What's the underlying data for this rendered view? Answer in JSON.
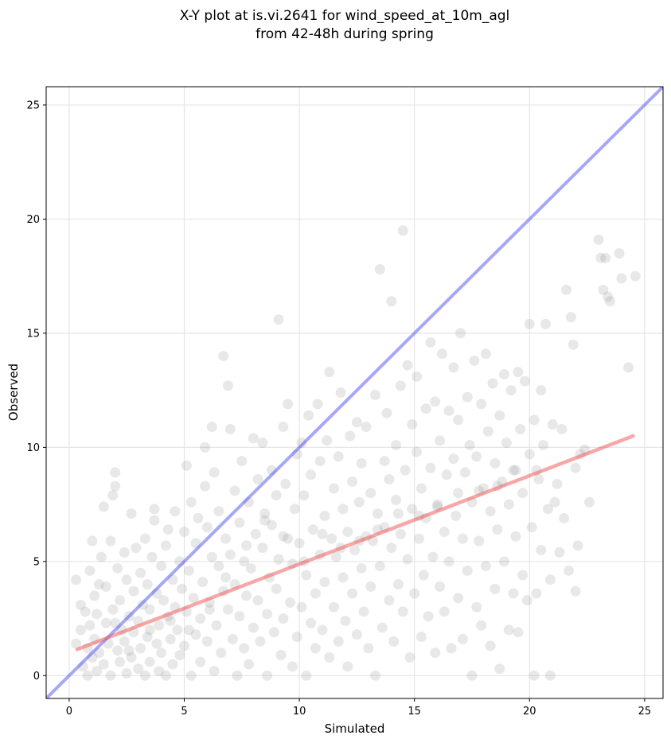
{
  "chart_data": {
    "type": "scatter",
    "title_lines": [
      "X-Y plot at is.vi.2641 for wind_speed_at_10m_agl",
      "from 42-48h during spring"
    ],
    "xlabel": "Simulated",
    "ylabel": "Observed",
    "xlim": [
      -1,
      25.8
    ],
    "ylim": [
      -1,
      25.8
    ],
    "xticks": [
      0,
      5,
      10,
      15,
      20,
      25
    ],
    "yticks": [
      0,
      5,
      10,
      15,
      20,
      25
    ],
    "grid": true,
    "point_color": "#808080",
    "point_opacity": 0.18,
    "one_to_one_line": {
      "x": [
        -1,
        25.8
      ],
      "y": [
        -1,
        25.8
      ],
      "color": "#3c3cf0"
    },
    "fit_line": {
      "x": [
        0.35,
        24.5
      ],
      "y": [
        1.15,
        10.5
      ],
      "color": "#f05050"
    },
    "points": [
      [
        0.3,
        1.4
      ],
      [
        0.3,
        4.2
      ],
      [
        0.5,
        3.1
      ],
      [
        0.5,
        2.0
      ],
      [
        0.6,
        0.4
      ],
      [
        0.7,
        2.8
      ],
      [
        0.8,
        1.2
      ],
      [
        0.8,
        0.0
      ],
      [
        0.9,
        4.6
      ],
      [
        0.9,
        2.2
      ],
      [
        1.0,
        0.8
      ],
      [
        1.0,
        5.9
      ],
      [
        1.1,
        3.5
      ],
      [
        1.1,
        1.6
      ],
      [
        1.2,
        0.2
      ],
      [
        1.2,
        2.7
      ],
      [
        1.3,
        4.0
      ],
      [
        1.3,
        1.0
      ],
      [
        1.4,
        5.2
      ],
      [
        1.5,
        0.5
      ],
      [
        1.5,
        7.4
      ],
      [
        1.6,
        2.3
      ],
      [
        1.6,
        3.9
      ],
      [
        1.7,
        1.4
      ],
      [
        1.8,
        0.0
      ],
      [
        1.8,
        5.9
      ],
      [
        1.9,
        7.9
      ],
      [
        1.9,
        2.9
      ],
      [
        2.0,
        8.9
      ],
      [
        2.0,
        8.3
      ],
      [
        2.1,
        1.1
      ],
      [
        2.1,
        4.7
      ],
      [
        2.2,
        0.6
      ],
      [
        2.2,
        3.3
      ],
      [
        2.3,
        2.0
      ],
      [
        2.4,
        5.4
      ],
      [
        2.4,
        1.5
      ],
      [
        2.5,
        0.1
      ],
      [
        2.5,
        4.2
      ],
      [
        2.6,
        2.6
      ],
      [
        2.7,
        7.1
      ],
      [
        2.7,
        0.8
      ],
      [
        2.8,
        3.7
      ],
      [
        2.8,
        1.9
      ],
      [
        2.9,
        5.6
      ],
      [
        3.0,
        0.3
      ],
      [
        3.0,
        2.4
      ],
      [
        3.1,
        4.5
      ],
      [
        3.1,
        1.2
      ],
      [
        3.2,
        3.1
      ],
      [
        3.3,
        0.0
      ],
      [
        3.3,
        6.0
      ],
      [
        3.4,
        1.7
      ],
      [
        3.4,
        4.0
      ],
      [
        3.5,
        2.9
      ],
      [
        3.5,
        0.6
      ],
      [
        3.6,
        5.2
      ],
      [
        3.7,
        7.3
      ],
      [
        3.7,
        6.8
      ],
      [
        3.8,
        1.4
      ],
      [
        3.8,
        3.6
      ],
      [
        3.9,
        0.2
      ],
      [
        3.9,
        2.2
      ],
      [
        4.0,
        4.8
      ],
      [
        4.0,
        1.0
      ],
      [
        4.1,
        3.3
      ],
      [
        4.2,
        0.0
      ],
      [
        4.2,
        5.7
      ],
      [
        4.3,
        2.6
      ],
      [
        4.3,
        6.4
      ],
      [
        4.4,
        1.6
      ],
      [
        4.5,
        4.2
      ],
      [
        4.5,
        0.5
      ],
      [
        4.6,
        3.0
      ],
      [
        4.6,
        7.2
      ],
      [
        4.7,
        2.0
      ],
      [
        4.8,
        5.0
      ],
      [
        4.8,
        0.9
      ],
      [
        4.9,
        3.8
      ],
      [
        5.0,
        6.3
      ],
      [
        5.0,
        1.3
      ],
      [
        5.1,
        9.2
      ],
      [
        5.1,
        2.8
      ],
      [
        5.2,
        4.6
      ],
      [
        5.3,
        0.0
      ],
      [
        5.3,
        7.6
      ],
      [
        5.4,
        3.4
      ],
      [
        5.5,
        1.8
      ],
      [
        5.5,
        5.8
      ],
      [
        5.6,
        6.9
      ],
      [
        5.7,
        2.5
      ],
      [
        5.7,
        0.6
      ],
      [
        5.8,
        4.1
      ],
      [
        5.9,
        10.0
      ],
      [
        5.9,
        8.3
      ],
      [
        6.0,
        1.5
      ],
      [
        6.0,
        6.5
      ],
      [
        6.1,
        3.2
      ],
      [
        6.2,
        10.9
      ],
      [
        6.2,
        5.2
      ],
      [
        6.3,
        0.2
      ],
      [
        6.3,
        8.9
      ],
      [
        6.4,
        2.2
      ],
      [
        6.5,
        4.8
      ],
      [
        6.5,
        7.2
      ],
      [
        6.6,
        1.0
      ],
      [
        6.7,
        3.7
      ],
      [
        6.7,
        14.0
      ],
      [
        6.8,
        6.0
      ],
      [
        6.9,
        12.7
      ],
      [
        6.9,
        2.9
      ],
      [
        7.0,
        10.8
      ],
      [
        7.0,
        5.3
      ],
      [
        7.1,
        1.6
      ],
      [
        7.2,
        8.1
      ],
      [
        7.2,
        4.0
      ],
      [
        7.3,
        0.0
      ],
      [
        7.4,
        6.7
      ],
      [
        7.4,
        2.6
      ],
      [
        7.5,
        9.4
      ],
      [
        7.6,
        5.0
      ],
      [
        7.6,
        1.2
      ],
      [
        7.7,
        3.5
      ],
      [
        7.8,
        7.6
      ],
      [
        7.8,
        0.5
      ],
      [
        7.9,
        4.7
      ],
      [
        8.0,
        10.4
      ],
      [
        8.0,
        2.1
      ],
      [
        8.1,
        6.2
      ],
      [
        8.2,
        8.6
      ],
      [
        8.2,
        3.3
      ],
      [
        8.3,
        1.5
      ],
      [
        8.4,
        5.6
      ],
      [
        8.4,
        10.2
      ],
      [
        8.5,
        7.1
      ],
      [
        8.6,
        2.7
      ],
      [
        8.6,
        0.0
      ],
      [
        8.7,
        4.3
      ],
      [
        8.8,
        9.0
      ],
      [
        8.8,
        6.6
      ],
      [
        8.9,
        1.9
      ],
      [
        9.0,
        3.8
      ],
      [
        9.0,
        7.9
      ],
      [
        9.1,
        15.6
      ],
      [
        9.1,
        5.1
      ],
      [
        9.2,
        0.9
      ],
      [
        9.3,
        10.9
      ],
      [
        9.3,
        2.5
      ],
      [
        9.4,
        8.4
      ],
      [
        9.5,
        6.0
      ],
      [
        9.5,
        11.9
      ],
      [
        9.6,
        3.2
      ],
      [
        9.7,
        4.9
      ],
      [
        9.7,
        0.4
      ],
      [
        9.8,
        7.3
      ],
      [
        9.9,
        9.7
      ],
      [
        9.9,
        1.7
      ],
      [
        10.0,
        5.8
      ],
      [
        10.1,
        3.0
      ],
      [
        10.1,
        10.2
      ],
      [
        10.2,
        7.9
      ],
      [
        10.3,
        0.0
      ],
      [
        10.3,
        4.4
      ],
      [
        10.4,
        11.4
      ],
      [
        10.5,
        2.3
      ],
      [
        10.5,
        8.8
      ],
      [
        10.6,
        6.4
      ],
      [
        10.7,
        1.2
      ],
      [
        10.7,
        3.6
      ],
      [
        10.8,
        11.9
      ],
      [
        10.9,
        9.4
      ],
      [
        10.9,
        5.3
      ],
      [
        11.0,
        2.0
      ],
      [
        11.1,
        7.0
      ],
      [
        11.1,
        4.1
      ],
      [
        11.2,
        10.3
      ],
      [
        11.3,
        0.8
      ],
      [
        11.3,
        13.3
      ],
      [
        11.4,
        6.0
      ],
      [
        11.5,
        8.2
      ],
      [
        11.5,
        3.0
      ],
      [
        11.6,
        5.2
      ],
      [
        11.7,
        1.5
      ],
      [
        11.7,
        9.6
      ],
      [
        11.8,
        12.4
      ],
      [
        11.9,
        4.3
      ],
      [
        11.9,
        7.3
      ],
      [
        12.0,
        2.4
      ],
      [
        12.1,
        6.3
      ],
      [
        12.1,
        0.4
      ],
      [
        12.2,
        10.5
      ],
      [
        12.3,
        3.6
      ],
      [
        12.3,
        8.5
      ],
      [
        12.4,
        5.5
      ],
      [
        12.5,
        11.1
      ],
      [
        12.5,
        1.8
      ],
      [
        12.6,
        7.6
      ],
      [
        12.7,
        4.7
      ],
      [
        12.7,
        9.3
      ],
      [
        12.8,
        2.8
      ],
      [
        12.9,
        6.1
      ],
      [
        12.9,
        10.9
      ],
      [
        13.0,
        1.2
      ],
      [
        13.1,
        8.0
      ],
      [
        13.1,
        3.9
      ],
      [
        13.2,
        5.9
      ],
      [
        13.3,
        0.0
      ],
      [
        13.3,
        12.3
      ],
      [
        13.4,
        7.1
      ],
      [
        13.5,
        17.8
      ],
      [
        13.5,
        4.8
      ],
      [
        13.6,
        2.1
      ],
      [
        13.7,
        9.4
      ],
      [
        13.7,
        6.5
      ],
      [
        13.8,
        11.5
      ],
      [
        13.9,
        3.3
      ],
      [
        13.9,
        8.6
      ],
      [
        14.0,
        16.4
      ],
      [
        14.0,
        5.6
      ],
      [
        14.1,
        1.5
      ],
      [
        14.2,
        10.1
      ],
      [
        14.2,
        7.7
      ],
      [
        14.3,
        4.0
      ],
      [
        14.4,
        12.7
      ],
      [
        14.4,
        6.2
      ],
      [
        14.5,
        19.5
      ],
      [
        14.5,
        2.8
      ],
      [
        14.6,
        9.0
      ],
      [
        14.7,
        13.6
      ],
      [
        14.7,
        5.1
      ],
      [
        14.8,
        0.8
      ],
      [
        14.9,
        11.0
      ],
      [
        14.9,
        7.3
      ],
      [
        15.0,
        3.6
      ],
      [
        15.1,
        13.1
      ],
      [
        15.1,
        9.8
      ],
      [
        15.2,
        6.0
      ],
      [
        15.3,
        1.7
      ],
      [
        15.3,
        8.2
      ],
      [
        15.4,
        4.4
      ],
      [
        15.5,
        11.7
      ],
      [
        15.5,
        6.9
      ],
      [
        15.6,
        2.6
      ],
      [
        15.7,
        14.6
      ],
      [
        15.7,
        9.1
      ],
      [
        15.8,
        5.2
      ],
      [
        15.9,
        1.0
      ],
      [
        15.9,
        12.0
      ],
      [
        16.0,
        7.4
      ],
      [
        16.1,
        3.9
      ],
      [
        16.1,
        10.3
      ],
      [
        16.2,
        14.1
      ],
      [
        16.3,
        6.3
      ],
      [
        16.3,
        2.8
      ],
      [
        16.4,
        8.8
      ],
      [
        16.5,
        11.6
      ],
      [
        16.5,
        5.0
      ],
      [
        16.6,
        1.2
      ],
      [
        16.7,
        13.5
      ],
      [
        16.7,
        9.5
      ],
      [
        16.8,
        7.0
      ],
      [
        16.9,
        3.4
      ],
      [
        16.9,
        11.2
      ],
      [
        17.0,
        15.0
      ],
      [
        17.1,
        6.0
      ],
      [
        17.1,
        1.6
      ],
      [
        17.2,
        8.9
      ],
      [
        17.3,
        12.2
      ],
      [
        17.3,
        4.6
      ],
      [
        17.4,
        10.1
      ],
      [
        17.5,
        0.0
      ],
      [
        17.5,
        7.6
      ],
      [
        17.6,
        13.8
      ],
      [
        17.7,
        3.0
      ],
      [
        17.7,
        9.6
      ],
      [
        17.8,
        5.9
      ],
      [
        17.9,
        11.9
      ],
      [
        17.9,
        2.2
      ],
      [
        18.0,
        8.2
      ],
      [
        18.1,
        14.1
      ],
      [
        18.1,
        4.8
      ],
      [
        18.2,
        10.7
      ],
      [
        18.3,
        1.3
      ],
      [
        18.3,
        7.2
      ],
      [
        18.4,
        12.8
      ],
      [
        18.5,
        3.8
      ],
      [
        18.5,
        9.3
      ],
      [
        18.6,
        6.4
      ],
      [
        18.7,
        11.4
      ],
      [
        18.7,
        0.3
      ],
      [
        18.8,
        8.5
      ],
      [
        18.9,
        13.2
      ],
      [
        18.9,
        5.0
      ],
      [
        19.0,
        10.2
      ],
      [
        19.1,
        2.0
      ],
      [
        19.1,
        7.5
      ],
      [
        19.2,
        12.5
      ],
      [
        19.3,
        3.6
      ],
      [
        19.3,
        9.0
      ],
      [
        19.4,
        6.1
      ],
      [
        19.5,
        13.3
      ],
      [
        19.5,
        1.9
      ],
      [
        19.6,
        10.8
      ],
      [
        19.7,
        4.4
      ],
      [
        19.7,
        8.0
      ],
      [
        19.8,
        12.9
      ],
      [
        19.9,
        3.3
      ],
      [
        20.0,
        9.7
      ],
      [
        20.0,
        15.4
      ],
      [
        20.1,
        6.5
      ],
      [
        20.2,
        0.0
      ],
      [
        20.2,
        11.2
      ],
      [
        20.3,
        3.6
      ],
      [
        20.4,
        8.6
      ],
      [
        20.5,
        12.5
      ],
      [
        20.5,
        5.5
      ],
      [
        20.6,
        10.1
      ],
      [
        20.7,
        15.4
      ],
      [
        20.8,
        7.3
      ],
      [
        20.9,
        0.0
      ],
      [
        20.9,
        4.2
      ],
      [
        21.0,
        11.0
      ],
      [
        21.1,
        7.6
      ],
      [
        21.2,
        8.4
      ],
      [
        21.3,
        5.4
      ],
      [
        21.4,
        10.8
      ],
      [
        21.5,
        6.9
      ],
      [
        21.6,
        16.9
      ],
      [
        21.7,
        4.6
      ],
      [
        21.8,
        15.7
      ],
      [
        21.9,
        14.5
      ],
      [
        22.0,
        3.7
      ],
      [
        22.0,
        9.1
      ],
      [
        22.1,
        5.7
      ],
      [
        22.2,
        9.7
      ],
      [
        22.4,
        9.9
      ],
      [
        22.6,
        7.6
      ],
      [
        23.0,
        19.1
      ],
      [
        23.1,
        18.3
      ],
      [
        23.2,
        16.9
      ],
      [
        23.3,
        18.3
      ],
      [
        23.4,
        16.6
      ],
      [
        23.5,
        16.4
      ],
      [
        23.9,
        18.5
      ],
      [
        24.0,
        17.4
      ],
      [
        24.3,
        13.5
      ],
      [
        24.6,
        17.5
      ],
      [
        2.0,
        2.3
      ],
      [
        2.6,
        1.1
      ],
      [
        3.5,
        2.0
      ],
      [
        4.4,
        2.4
      ],
      [
        5.2,
        2.0
      ],
      [
        6.1,
        2.9
      ],
      [
        6.8,
        4.3
      ],
      [
        7.7,
        5.7
      ],
      [
        8.5,
        6.8
      ],
      [
        9.3,
        6.1
      ],
      [
        10.2,
        5.0
      ],
      [
        11.0,
        6.2
      ],
      [
        11.8,
        5.6
      ],
      [
        12.6,
        5.9
      ],
      [
        13.4,
        6.4
      ],
      [
        14.3,
        7.1
      ],
      [
        15.2,
        7.0
      ],
      [
        16.0,
        7.5
      ],
      [
        16.9,
        8.0
      ],
      [
        17.8,
        8.1
      ],
      [
        18.6,
        8.3
      ],
      [
        19.4,
        9.0
      ],
      [
        20.3,
        9.0
      ]
    ]
  }
}
